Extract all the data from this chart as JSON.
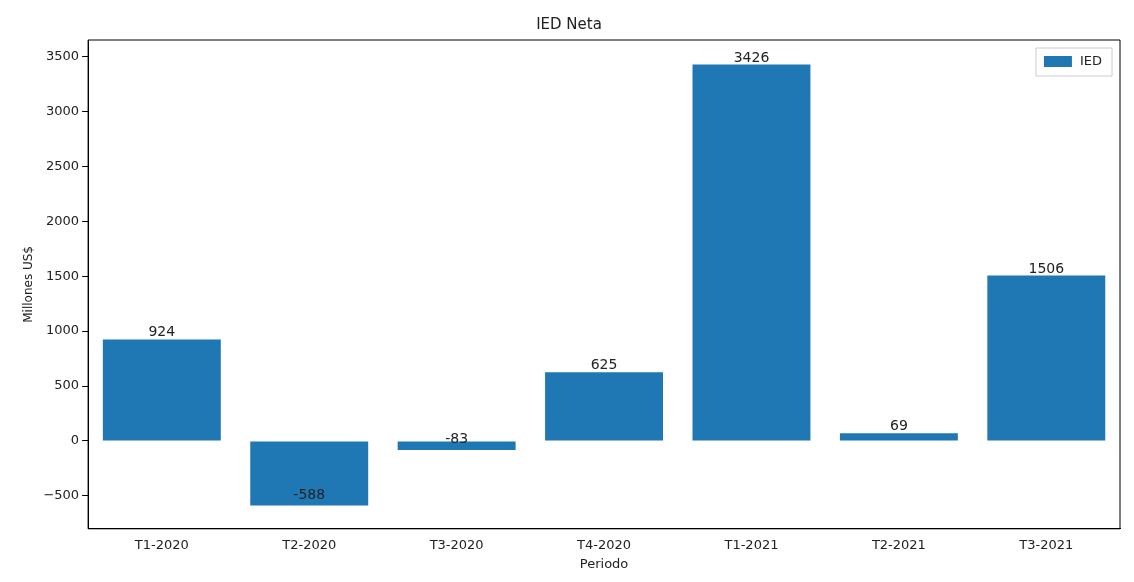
{
  "chart_data": {
    "type": "bar",
    "title": "IED Neta",
    "xlabel": "Periodo",
    "ylabel": "Millones US$",
    "categories": [
      "T1-2020",
      "T2-2020",
      "T3-2020",
      "T4-2020",
      "T1-2021",
      "T2-2021",
      "T3-2021"
    ],
    "series": [
      {
        "name": "IED",
        "color": "#1f77b4",
        "values": [
          924,
          -588,
          -83,
          625,
          3426,
          69,
          1506
        ]
      }
    ],
    "ylim": [
      -800,
      3650
    ],
    "yticks": [
      -500,
      0,
      500,
      1000,
      1500,
      2000,
      2500,
      3000,
      3500
    ],
    "data_labels": true,
    "legend": "top right",
    "grid": false
  }
}
